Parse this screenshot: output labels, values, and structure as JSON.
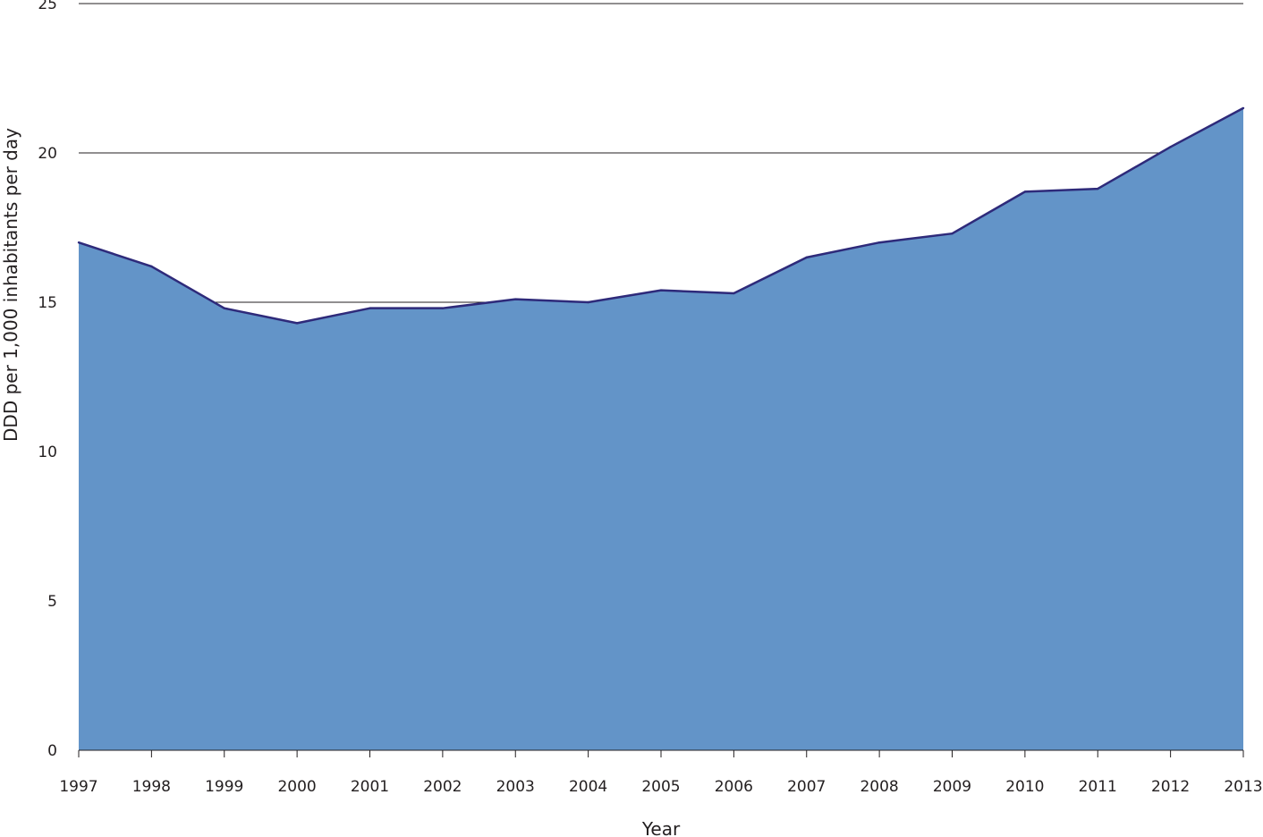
{
  "chart_data": {
    "type": "area",
    "title": "",
    "xlabel": "Year",
    "ylabel": "DDD per 1,000 inhabitants per day",
    "x": [
      "1997",
      "1998",
      "1999",
      "2000",
      "2001",
      "2002",
      "2003",
      "2004",
      "2005",
      "2006",
      "2007",
      "2008",
      "2009",
      "2010",
      "2011",
      "2012",
      "2013"
    ],
    "series": [
      {
        "values": [
          17.0,
          16.2,
          14.8,
          14.3,
          14.8,
          14.8,
          15.1,
          15.0,
          15.4,
          15.3,
          16.5,
          17.0,
          17.3,
          18.7,
          18.8,
          20.2,
          21.5
        ]
      }
    ],
    "ylim": [
      0,
      25
    ],
    "yticks": [
      0,
      5,
      10,
      15,
      20,
      25
    ],
    "grid": true,
    "colors": {
      "fill": "#6394c8",
      "line": "#2e2a7a",
      "grid": "#231f20",
      "axis": "#231f20"
    }
  }
}
